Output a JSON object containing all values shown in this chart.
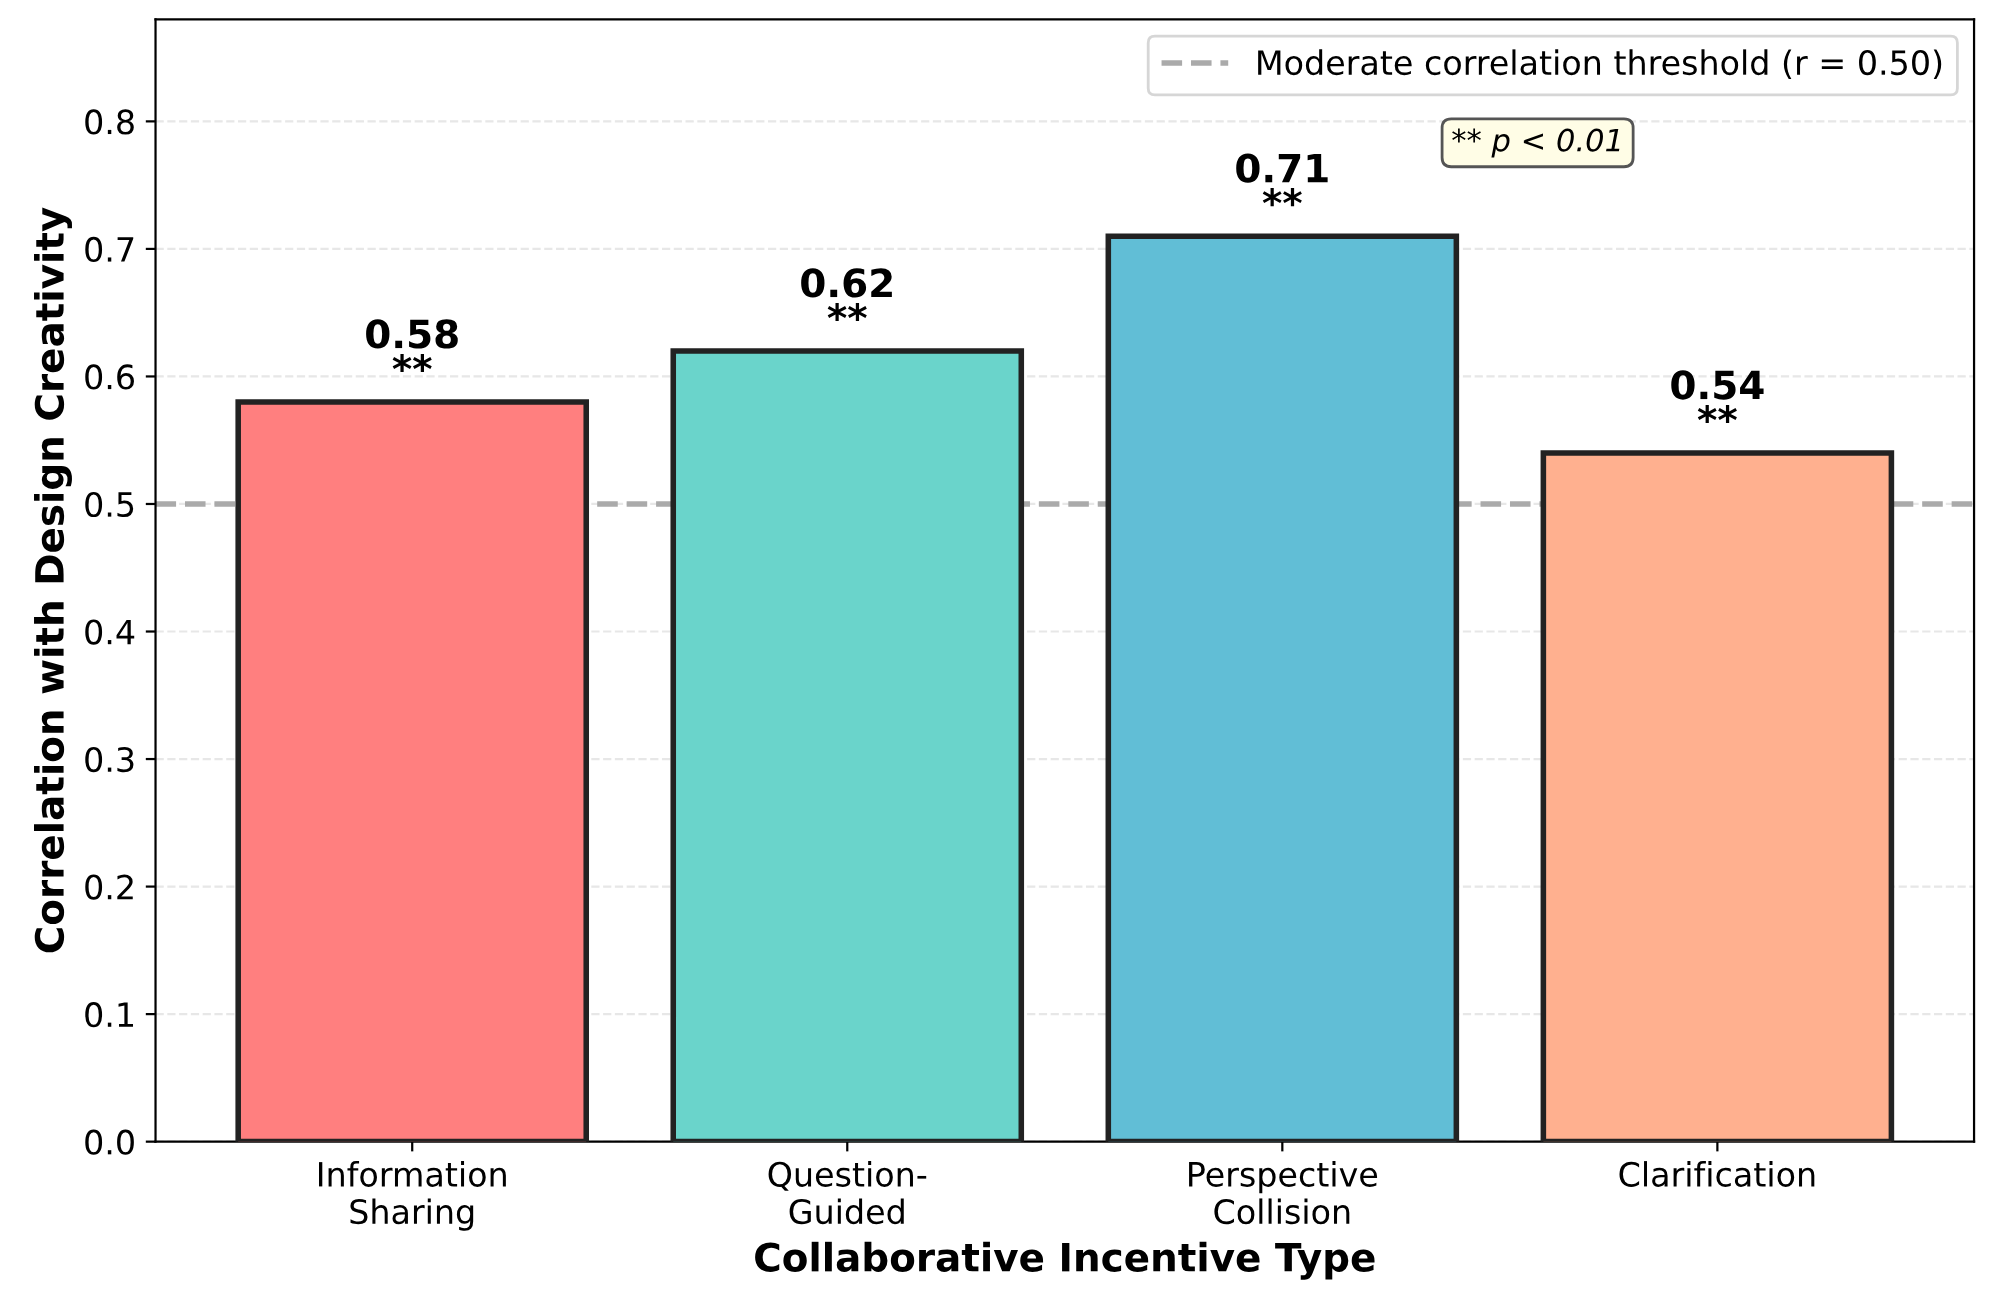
{
  "chart_data": {
    "type": "bar",
    "xlabel": "Collaborative Incentive Type",
    "ylabel": "Correlation with Design Creativity",
    "categories": [
      "Information\nSharing",
      "Question-\nGuided",
      "Perspective\nCollision",
      "Clarification"
    ],
    "values": [
      0.58,
      0.62,
      0.71,
      0.54
    ],
    "colors": [
      "#ff7f7f",
      "#6ad4cb",
      "#61bed6",
      "#ffb08f"
    ],
    "value_labels": [
      "0.58\n**",
      "0.62\n**",
      "0.71\n**",
      "0.54\n**"
    ],
    "ylim": [
      0,
      0.88
    ],
    "yticks": [
      {
        "value": 0,
        "label": "0.0"
      },
      0.1,
      0.2,
      0.3,
      0.4,
      0.5,
      0.6,
      0.7,
      0.8
    ],
    "grid": "y",
    "legend": "top right",
    "ref_lines": [
      {
        "axis": "y",
        "value": 0.5,
        "label": "Moderate correlation threshold (r = 0.50)",
        "color": "#aaaaaa",
        "line_style": "dashed"
      }
    ],
    "annotations": [
      "** p < 0.01"
    ]
  }
}
